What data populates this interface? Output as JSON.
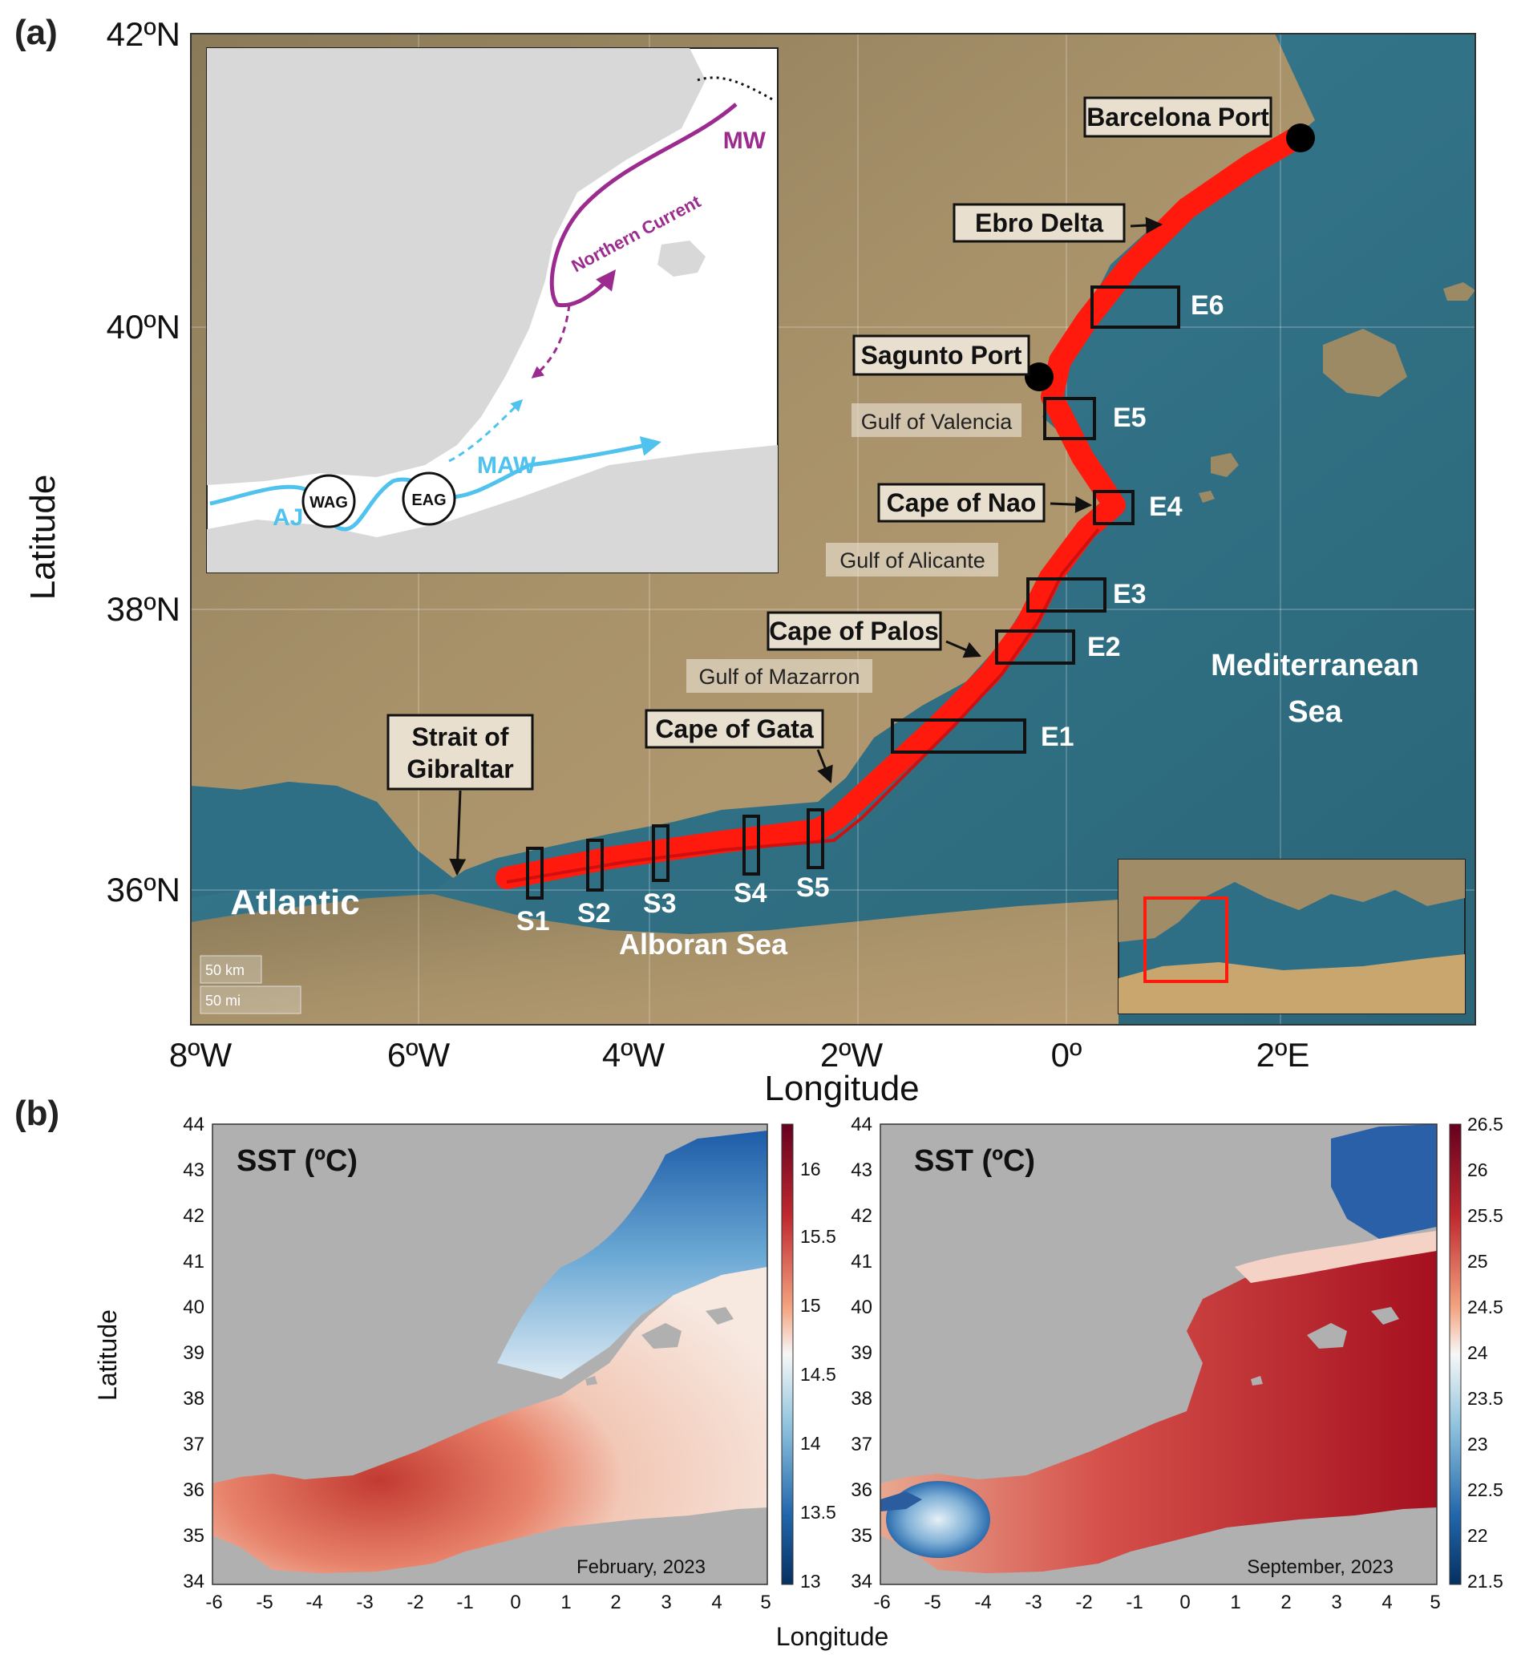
{
  "panel_a": {
    "label": "(a)",
    "lat_ticks": [
      "42ºN",
      "40ºN",
      "38ºN",
      "36ºN"
    ],
    "lon_ticks": [
      "8ºW",
      "6ºW",
      "4ºW",
      "2ºW",
      "0º",
      "2ºE"
    ],
    "xlabel": "Longitude",
    "ylabel": "Latitude",
    "boxed_labels": {
      "barcelona": "Barcelona Port",
      "ebro": "Ebro Delta",
      "sagunto": "Sagunto Port",
      "nao": "Cape of Nao",
      "palos": "Cape of Palos",
      "gata": "Cape of Gata",
      "gibraltar_1": "Strait of",
      "gibraltar_2": "Gibraltar"
    },
    "gulf_labels": {
      "valencia": "Gulf of Valencia",
      "alicante": "Gulf of Alicante",
      "mazarron": "Gulf of Mazarron"
    },
    "sea_labels": {
      "med_1": "Mediterranean",
      "med_2": "Sea",
      "atlantic": "Atlantic",
      "alboran": "Alboran Sea"
    },
    "sections": [
      "S1",
      "S2",
      "S3",
      "S4",
      "S5",
      "E1",
      "E2",
      "E3",
      "E4",
      "E5",
      "E6"
    ],
    "scale_bar": {
      "km": "50 km",
      "mi": "50 mi"
    },
    "inset_currents": {
      "mw": "MW",
      "northern_current": "Northern Current",
      "maw": "MAW",
      "aj": "AJ",
      "wag": "WAG",
      "eag": "EAG"
    },
    "colors": {
      "track": "#ff1a0d",
      "sea": "#2e6f86",
      "land": "#9c8a64",
      "inset_land": "#d8d8d8",
      "northern_current": "#9b2b8f",
      "maw": "#4fc3ee"
    }
  },
  "panel_b": {
    "label": "(b)",
    "ylabel": "Latitude",
    "xlabel": "Longitude",
    "y_ticks": [
      "44",
      "43",
      "42",
      "41",
      "40",
      "39",
      "38",
      "37",
      "36",
      "35",
      "34"
    ],
    "x_ticks": [
      "-6",
      "-5",
      "-4",
      "-3",
      "-2",
      "-1",
      "0",
      "1",
      "2",
      "3",
      "4",
      "5"
    ],
    "maps": [
      {
        "title": "SST (ºC)",
        "date": "February, 2023",
        "colorbar_ticks": [
          "16",
          "15.5",
          "15",
          "14.5",
          "14",
          "13.5",
          "13"
        ],
        "cmin": 13,
        "cmax": 16.3
      },
      {
        "title": "SST (ºC)",
        "date": "September, 2023",
        "colorbar_ticks": [
          "26.5",
          "26",
          "25.5",
          "25",
          "24.5",
          "24",
          "23.5",
          "23",
          "22.5",
          "22",
          "21.5"
        ],
        "cmin": 21.5,
        "cmax": 26.5
      }
    ]
  }
}
